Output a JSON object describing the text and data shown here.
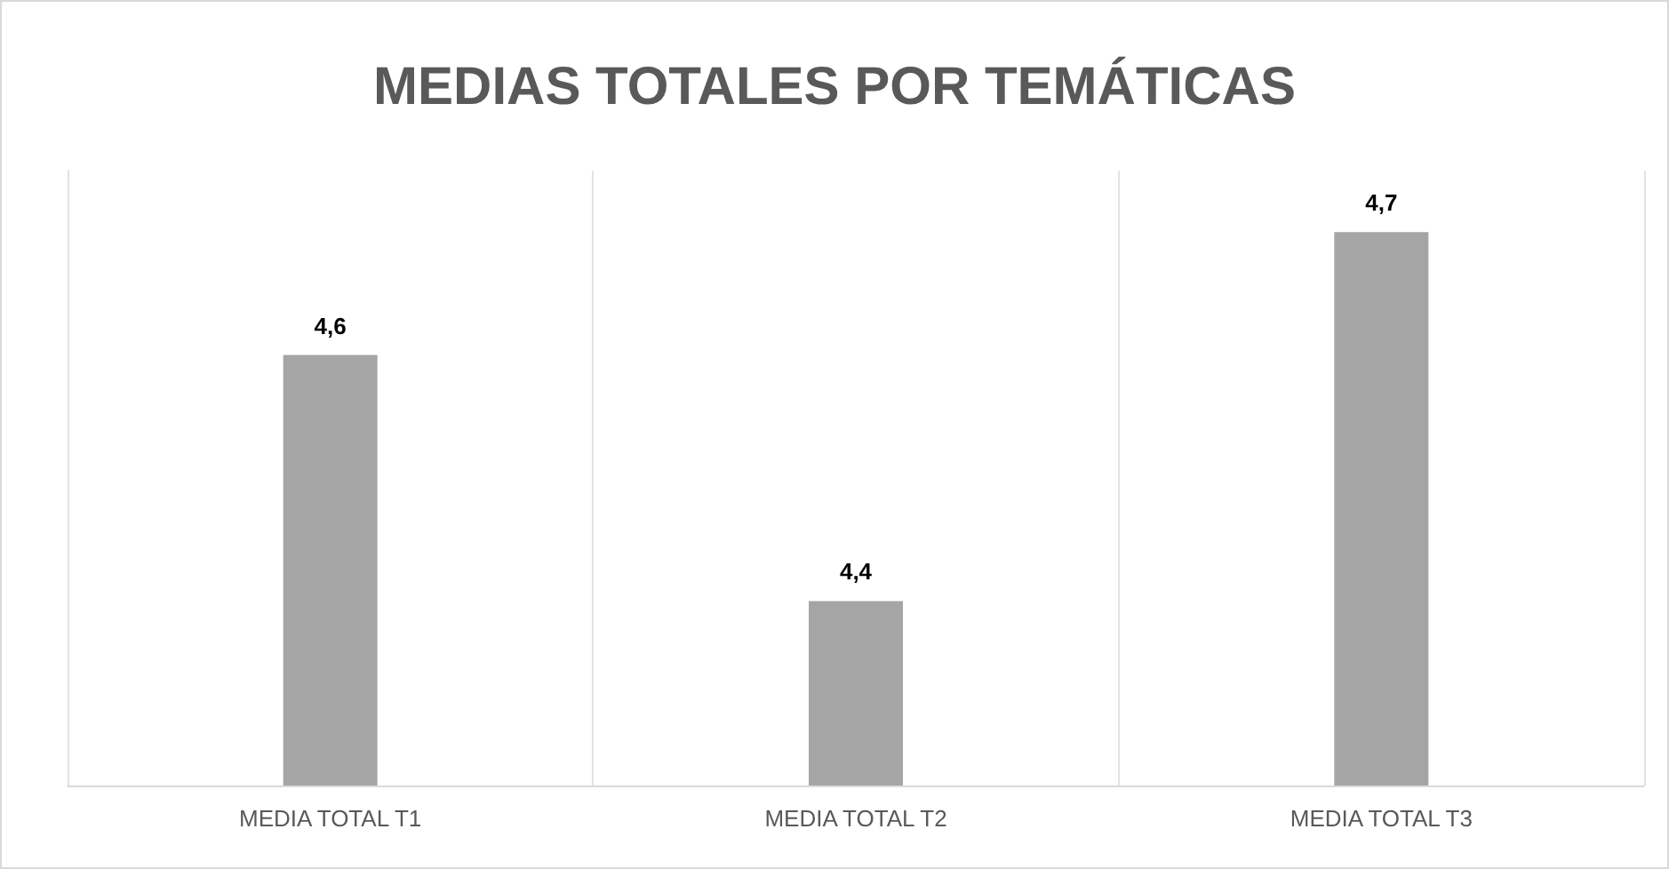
{
  "chart_data": {
    "type": "bar",
    "title": "MEDIAS TOTALES POR TEMÁTICAS",
    "categories": [
      "MEDIA TOTAL T1",
      "MEDIA TOTAL T2",
      "MEDIA TOTAL T3"
    ],
    "values": [
      4.6,
      4.4,
      4.7
    ],
    "value_labels": [
      "4,6",
      "4,4",
      "4,7"
    ],
    "color": "#a5a5a5",
    "ylim": [
      4.25,
      4.75
    ],
    "tick_labels": "x",
    "grid": "x"
  }
}
